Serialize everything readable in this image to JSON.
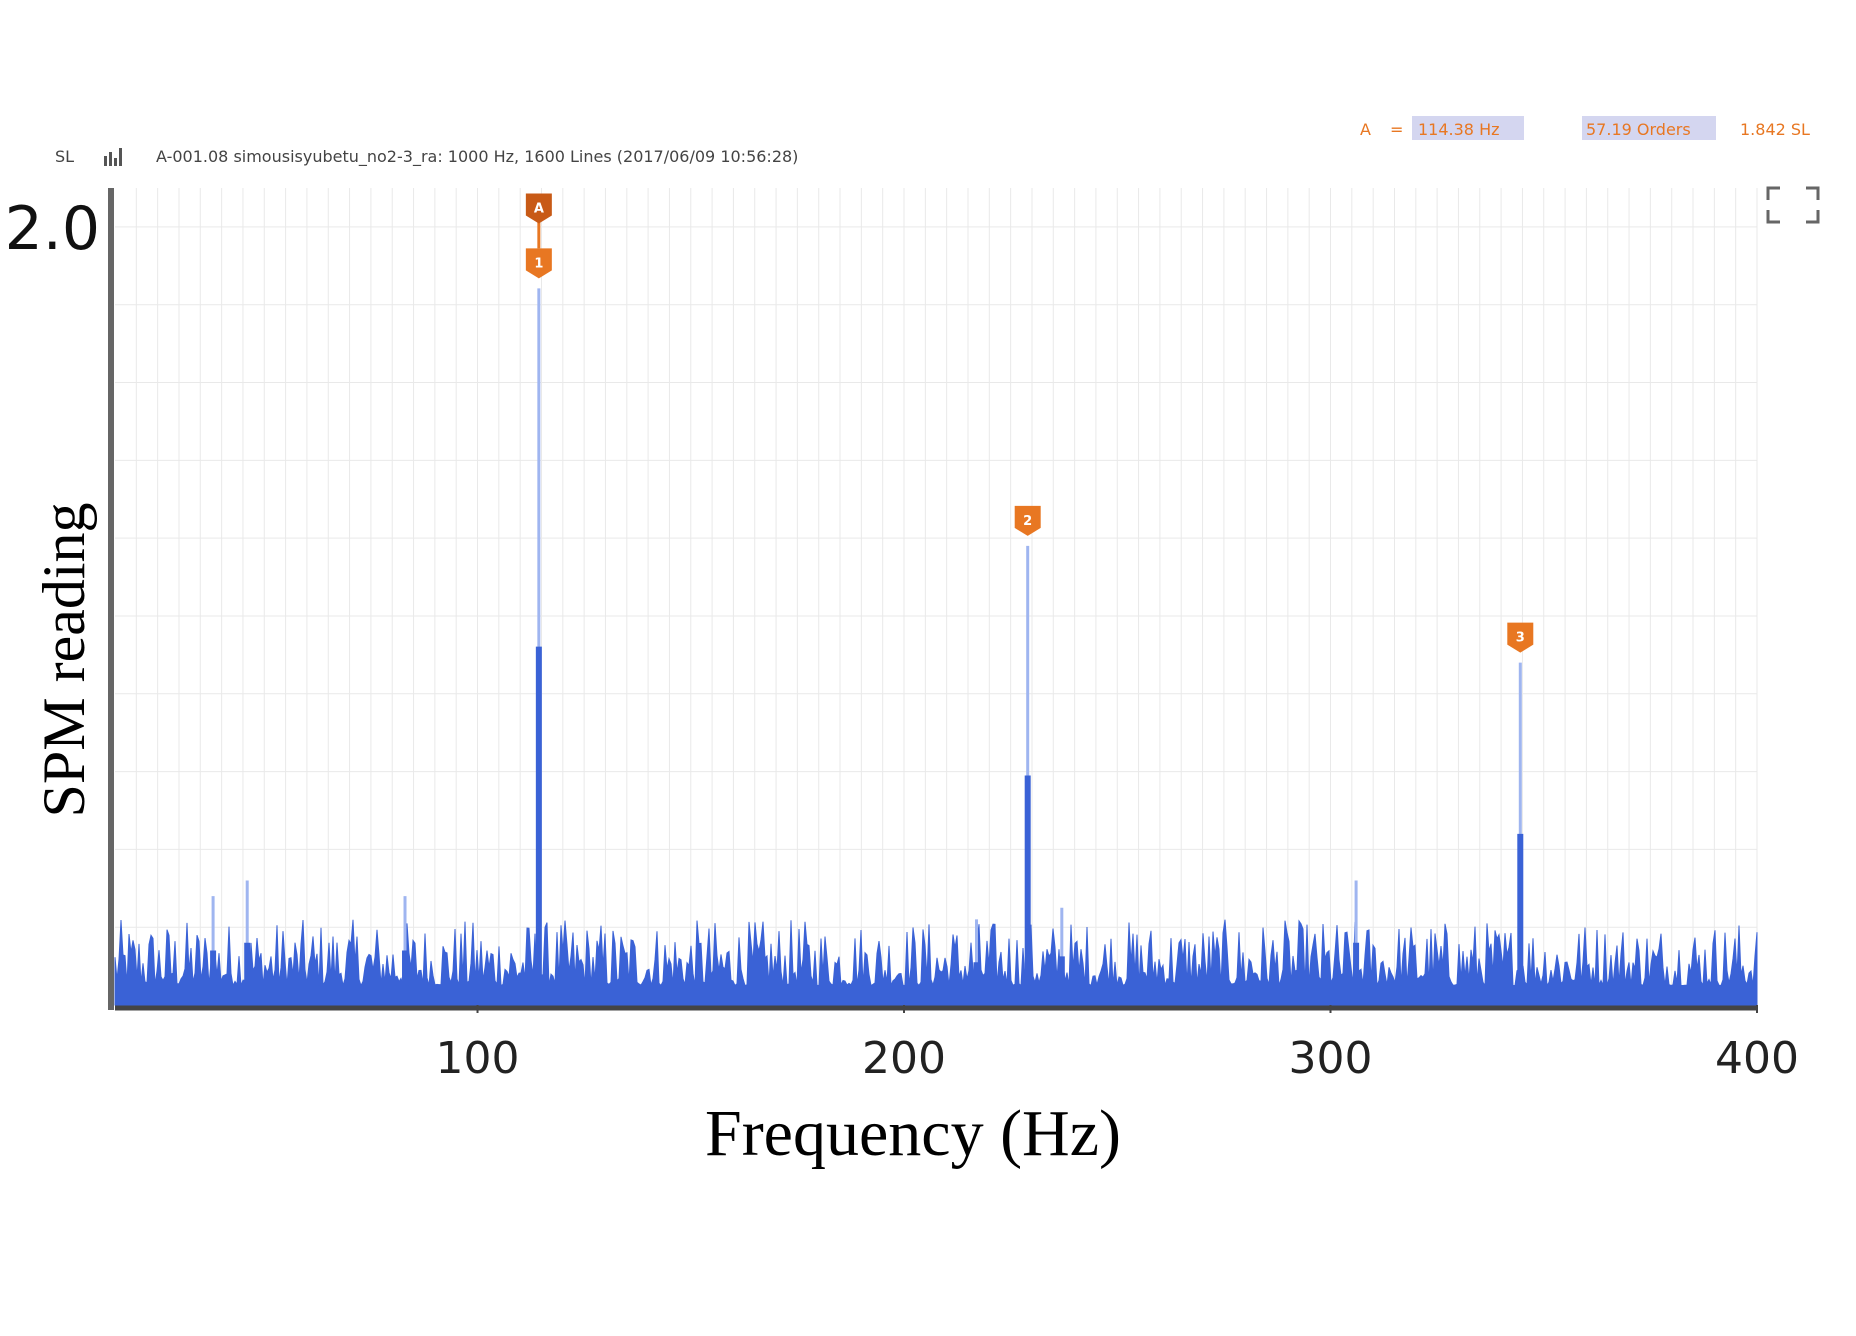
{
  "header": {
    "unit_label": "SL",
    "info": "A-001.08  simousisyubetu_no2-3_ra: 1000 Hz, 1600 Lines (2017/06/09 10:56:28)"
  },
  "readout": {
    "marker": "A",
    "eq": "=",
    "freq": "114.38 Hz",
    "orders": "57.19 Orders",
    "level": "1.842 SL"
  },
  "colors": {
    "series": "#3a62d6",
    "peak_line": "#9fb5f0",
    "marker": "#e87722",
    "marker_dark": "#c85a16",
    "axis": "#555555",
    "grid": "#e9e9e9",
    "readout_text": "#e87722",
    "readout_highlight": "#d4d6f0"
  },
  "icons": {
    "fullscreen": "fullscreen-icon",
    "chart_type": "spectrum-chart-icon"
  },
  "chart_data": {
    "type": "line",
    "title": "",
    "xlabel": "Frequency (Hz)",
    "ylabel": "SPM reading",
    "xlim": [
      15,
      400
    ],
    "ylim": [
      0,
      2.1
    ],
    "xticks": [
      100,
      200,
      300,
      400
    ],
    "yticks": [
      2.0
    ],
    "grid": true,
    "series": [
      {
        "peaks": [
          {
            "x": 114.38,
            "y": 1.842,
            "marker": "1"
          },
          {
            "x": 229.0,
            "y": 1.18,
            "marker": "2"
          },
          {
            "x": 344.5,
            "y": 0.88,
            "marker": "3"
          },
          {
            "x": 306.0,
            "y": 0.32
          },
          {
            "x": 46.0,
            "y": 0.32
          },
          {
            "x": 38.0,
            "y": 0.28
          },
          {
            "x": 83.0,
            "y": 0.28
          },
          {
            "x": 237.0,
            "y": 0.25
          },
          {
            "x": 217.0,
            "y": 0.22
          }
        ],
        "noise_floor": 0.05,
        "noise_peak_max": 0.22
      }
    ],
    "cursor": {
      "label": "A",
      "x": 114.38,
      "y": 2.05
    }
  }
}
